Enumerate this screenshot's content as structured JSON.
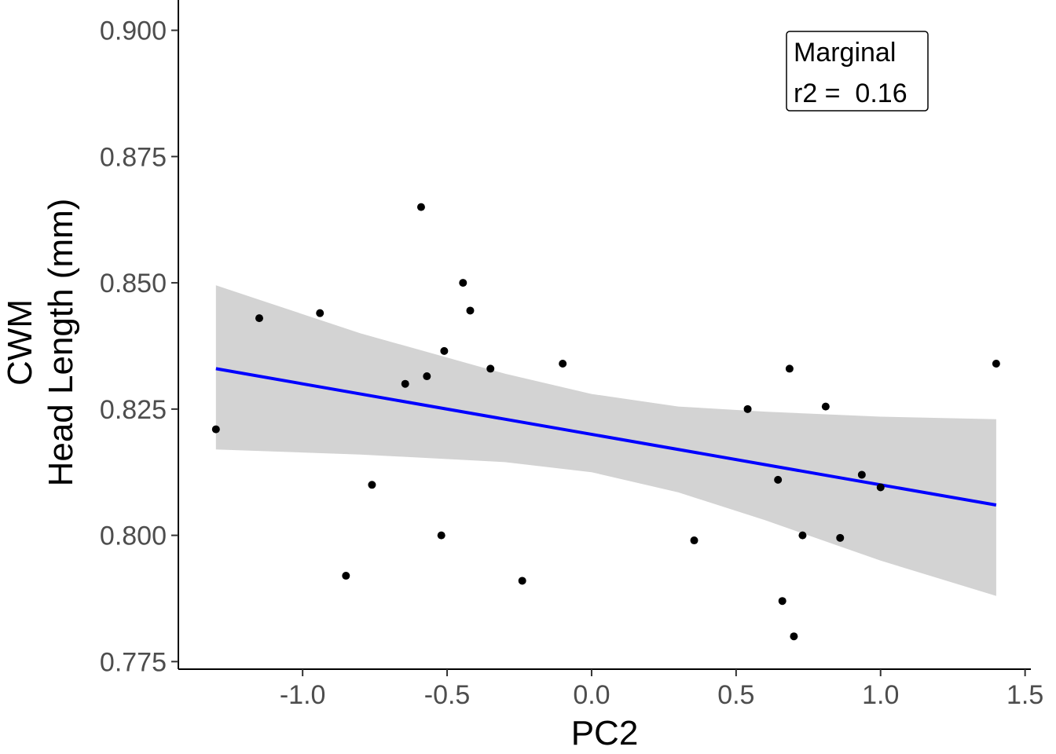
{
  "chart_data": {
    "type": "scatter",
    "title": "",
    "xlabel": "PC2",
    "ylabel_lines": [
      "CWM",
      "Head Length (mm)"
    ],
    "xlim": [
      -1.43,
      1.52
    ],
    "ylim": [
      0.7735,
      0.906
    ],
    "x_ticks": [
      -1.0,
      -0.5,
      0.0,
      0.5,
      1.0,
      1.5
    ],
    "x_tick_labels": [
      "-1.0",
      "-0.5",
      "0.0",
      "0.5",
      "1.0",
      "1.5"
    ],
    "y_ticks": [
      0.775,
      0.8,
      0.825,
      0.85,
      0.875,
      0.9
    ],
    "y_tick_labels": [
      "0.775",
      "0.800",
      "0.825",
      "0.850",
      "0.875",
      "0.900"
    ],
    "grid": false,
    "points": [
      {
        "x": -1.3,
        "y": 0.821
      },
      {
        "x": -1.15,
        "y": 0.843
      },
      {
        "x": -0.94,
        "y": 0.844
      },
      {
        "x": -0.85,
        "y": 0.792
      },
      {
        "x": -0.76,
        "y": 0.81
      },
      {
        "x": -0.645,
        "y": 0.83
      },
      {
        "x": -0.59,
        "y": 0.865
      },
      {
        "x": -0.57,
        "y": 0.8315
      },
      {
        "x": -0.52,
        "y": 0.8
      },
      {
        "x": -0.51,
        "y": 0.8365
      },
      {
        "x": -0.445,
        "y": 0.85
      },
      {
        "x": -0.42,
        "y": 0.8445
      },
      {
        "x": -0.35,
        "y": 0.833
      },
      {
        "x": -0.24,
        "y": 0.791
      },
      {
        "x": -0.1,
        "y": 0.834
      },
      {
        "x": 0.355,
        "y": 0.799
      },
      {
        "x": 0.54,
        "y": 0.825
      },
      {
        "x": 0.645,
        "y": 0.811
      },
      {
        "x": 0.66,
        "y": 0.787
      },
      {
        "x": 0.685,
        "y": 0.833
      },
      {
        "x": 0.7,
        "y": 0.78
      },
      {
        "x": 0.73,
        "y": 0.8
      },
      {
        "x": 0.81,
        "y": 0.8255
      },
      {
        "x": 0.86,
        "y": 0.7995
      },
      {
        "x": 0.935,
        "y": 0.812
      },
      {
        "x": 1.0,
        "y": 0.8095
      },
      {
        "x": 1.4,
        "y": 0.834
      }
    ],
    "fit_line": {
      "x": [
        -1.3,
        1.4
      ],
      "y": [
        0.833,
        0.806
      ],
      "color": "#0000ff"
    },
    "confidence_band": {
      "x": [
        -1.3,
        -0.8,
        -0.3,
        0.0,
        0.3,
        0.6,
        1.0,
        1.4
      ],
      "lower": [
        0.817,
        0.816,
        0.8145,
        0.8125,
        0.8085,
        0.803,
        0.795,
        0.788
      ],
      "upper": [
        0.8495,
        0.84,
        0.832,
        0.828,
        0.8255,
        0.8245,
        0.8235,
        0.823
      ],
      "color": "#d3d3d3"
    },
    "point_color": "#000000",
    "annotation": {
      "lines": [
        "Marginal",
        "r2 =  0.16"
      ],
      "placement": "top-right"
    }
  }
}
